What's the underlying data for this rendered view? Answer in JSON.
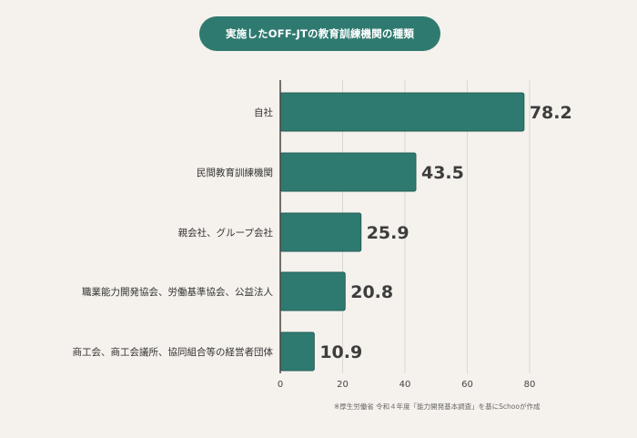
{
  "chart_data": {
    "type": "bar",
    "orientation": "horizontal",
    "title": "実施したOFF-JTの教育訓練機関の種類",
    "categories": [
      "自社",
      "民間教育訓練機関",
      "親会社、グループ会社",
      "職業能力開発協会、労働基準協会、公益法人",
      "商工会、商工会議所、協同組合等の経営者団体"
    ],
    "values": [
      78.2,
      43.5,
      25.9,
      20.8,
      10.9
    ],
    "value_labels": [
      "78.2",
      "43.5",
      "25.9",
      "20.8",
      "10.9"
    ],
    "xlim": [
      0,
      80
    ],
    "xticks": [
      "0",
      "20",
      "40",
      "60",
      "80"
    ],
    "grid": true,
    "xlabel": "",
    "ylabel": ""
  },
  "colors": {
    "bar": "#2f7a70",
    "bar_outline": "#255f57",
    "background": "#f5f1ec",
    "grid": "#dcd7d1",
    "axis": "#444444",
    "value_text": "#3d3d3d"
  },
  "footnote": "※厚生労働省 令和４年度「能力開発基本調査」を基にSchooが作成"
}
